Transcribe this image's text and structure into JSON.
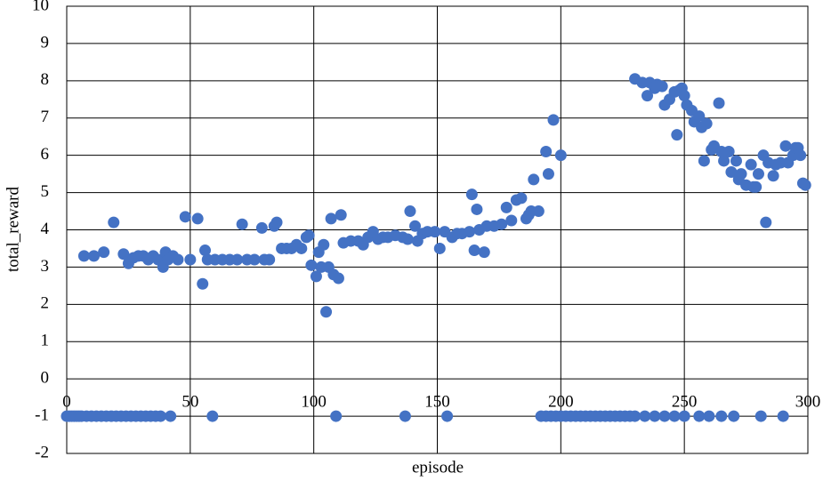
{
  "chart_data": {
    "type": "scatter",
    "x_label": "episode",
    "y_label": "total_reward",
    "xlim": [
      0,
      300
    ],
    "ylim": [
      -2,
      10
    ],
    "xticks": [
      0,
      50,
      100,
      150,
      200,
      250,
      300
    ],
    "yticks": [
      -2,
      -1,
      0,
      1,
      2,
      3,
      4,
      5,
      6,
      7,
      8,
      9,
      10
    ],
    "grid": true,
    "series": [
      {
        "color": "#4472c4",
        "x": [
          0,
          1,
          2,
          3,
          4,
          5,
          6,
          8,
          10,
          12,
          14,
          16,
          18,
          20,
          22,
          24,
          26,
          28,
          30,
          32,
          34,
          36,
          38,
          42,
          59,
          109,
          137,
          154,
          192,
          194,
          196,
          198,
          200,
          202,
          204,
          206,
          208,
          210,
          212,
          214,
          216,
          218,
          220,
          222,
          224,
          226,
          228,
          230,
          234,
          238,
          242,
          246,
          250,
          256,
          260,
          265,
          270,
          281,
          290,
          7,
          11,
          15,
          19,
          23,
          25,
          27,
          29,
          31,
          33,
          35,
          37,
          39,
          40,
          41,
          43,
          45,
          48,
          50,
          53,
          55,
          56,
          57,
          60,
          63,
          66,
          69,
          71,
          73,
          76,
          79,
          80,
          82,
          84,
          85,
          87,
          89,
          91,
          93,
          95,
          97,
          98,
          99,
          101,
          102,
          103,
          104,
          105,
          106,
          107,
          108,
          110,
          111,
          112,
          115,
          118,
          120,
          122,
          124,
          126,
          128,
          130,
          133,
          136,
          138,
          139,
          141,
          142,
          144,
          146,
          149,
          151,
          153,
          156,
          158,
          160,
          163,
          164,
          165,
          166,
          167,
          169,
          170,
          173,
          176,
          178,
          180,
          182,
          184,
          186,
          187,
          188,
          189,
          191,
          194,
          195,
          197,
          200,
          230,
          233,
          235,
          236,
          238,
          239,
          241,
          242,
          244,
          246,
          247,
          248,
          249,
          250,
          251,
          253,
          254,
          256,
          257,
          258,
          259,
          261,
          262,
          264,
          265,
          266,
          268,
          269,
          271,
          272,
          273,
          275,
          277,
          278,
          279,
          280,
          282,
          283,
          284,
          286,
          287,
          289,
          291,
          292,
          294,
          295,
          296,
          297,
          298,
          299
        ],
        "values": [
          -1,
          -1,
          -1,
          -1,
          -1,
          -1,
          -1,
          -1,
          -1,
          -1,
          -1,
          -1,
          -1,
          -1,
          -1,
          -1,
          -1,
          -1,
          -1,
          -1,
          -1,
          -1,
          -1,
          -1,
          -1,
          -1,
          -1,
          -1,
          -1,
          -1,
          -1,
          -1,
          -1,
          -1,
          -1,
          -1,
          -1,
          -1,
          -1,
          -1,
          -1,
          -1,
          -1,
          -1,
          -1,
          -1,
          -1,
          -1,
          -1,
          -1,
          -1,
          -1,
          -1,
          -1,
          -1,
          -1,
          -1,
          -1,
          -1,
          3.3,
          3.3,
          3.4,
          4.2,
          3.35,
          3.1,
          3.25,
          3.3,
          3.3,
          3.2,
          3.3,
          3.2,
          3.0,
          3.4,
          3.2,
          3.3,
          3.2,
          4.35,
          3.2,
          4.3,
          2.55,
          3.45,
          3.2,
          3.2,
          3.2,
          3.2,
          3.2,
          4.15,
          3.2,
          3.2,
          4.05,
          3.2,
          3.2,
          4.1,
          4.2,
          3.5,
          3.5,
          3.5,
          3.6,
          3.5,
          3.8,
          3.85,
          3.05,
          2.75,
          3.4,
          3.0,
          3.6,
          1.8,
          3.0,
          4.3,
          2.8,
          2.7,
          4.4,
          3.65,
          3.7,
          3.7,
          3.6,
          3.8,
          3.95,
          3.75,
          3.8,
          3.8,
          3.85,
          3.8,
          3.75,
          4.5,
          4.1,
          3.7,
          3.9,
          3.95,
          3.95,
          3.5,
          3.95,
          3.8,
          3.9,
          3.9,
          3.95,
          4.95,
          3.45,
          4.55,
          4.0,
          3.4,
          4.1,
          4.1,
          4.15,
          4.6,
          4.25,
          4.8,
          4.85,
          4.3,
          4.4,
          4.5,
          5.35,
          4.5,
          6.1,
          5.5,
          6.95,
          6.0,
          8.05,
          7.95,
          7.6,
          7.95,
          7.8,
          7.9,
          7.85,
          7.35,
          7.5,
          7.7,
          6.55,
          7.75,
          7.8,
          7.6,
          7.35,
          7.2,
          6.9,
          7.05,
          6.75,
          5.85,
          6.85,
          6.15,
          6.25,
          7.4,
          6.1,
          5.85,
          6.1,
          5.55,
          5.85,
          5.35,
          5.5,
          5.2,
          5.75,
          5.15,
          5.15,
          5.5,
          6.0,
          4.2,
          5.8,
          5.45,
          5.75,
          5.8,
          6.25,
          5.8,
          6.0,
          6.2,
          6.2,
          6.0,
          5.25,
          5.2
        ]
      }
    ]
  }
}
